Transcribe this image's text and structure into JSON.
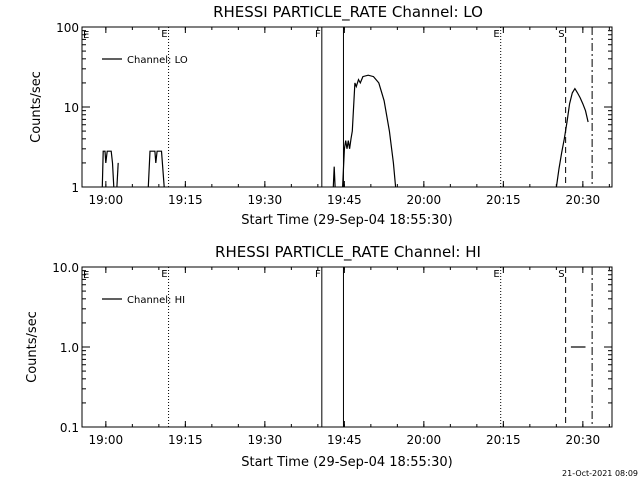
{
  "footer": {
    "timestamp": "21-Oct-2021 08:09"
  },
  "chart_data": [
    {
      "type": "line",
      "title": "RHESSI PARTICLE_RATE Channel: LO",
      "xlabel": "Start Time (29-Sep-04 18:55:30)",
      "ylabel": "Counts/sec",
      "y_scale": "log",
      "xlim": [
        "18:55:30",
        "20:35:30"
      ],
      "ylim": [
        1,
        100
      ],
      "x_ticks": [
        "19:00",
        "19:15",
        "19:30",
        "19:45",
        "20:00",
        "20:15",
        "20:30"
      ],
      "y_ticks": [
        "1",
        "10",
        "100"
      ],
      "legend": {
        "label": "Channel: LO",
        "placement": "top-left"
      },
      "series": [
        {
          "name": "Channel: LO",
          "segments": [
            [
              [
                "18:59:20",
                1.0
              ],
              [
                "18:59:30",
                2.8
              ],
              [
                "18:59:50",
                2.8
              ],
              [
                "19:00:00",
                2.0
              ],
              [
                "19:00:15",
                2.8
              ],
              [
                "19:01:00",
                2.8
              ],
              [
                "19:01:15",
                2.0
              ],
              [
                "19:01:30",
                1.0
              ]
            ],
            [
              [
                "19:02:05",
                1.0
              ],
              [
                "19:02:20",
                2.0
              ]
            ],
            [
              [
                "19:08:00",
                1.0
              ],
              [
                "19:08:20",
                2.8
              ],
              [
                "19:09:15",
                2.8
              ],
              [
                "19:09:25",
                2.0
              ],
              [
                "19:09:40",
                2.8
              ],
              [
                "19:10:30",
                2.8
              ],
              [
                "19:11:00",
                1.0
              ]
            ],
            [
              [
                "19:42:55",
                1.0
              ],
              [
                "19:43:05",
                1.8
              ],
              [
                "19:43:15",
                1.0
              ]
            ],
            [
              [
                "19:44:40",
                1.0
              ],
              [
                "19:45:00",
                3.0
              ],
              [
                "19:45:15",
                3.8
              ],
              [
                "19:45:30",
                3.0
              ],
              [
                "19:45:45",
                3.8
              ],
              [
                "19:46:00",
                3.0
              ],
              [
                "19:46:15",
                4.0
              ],
              [
                "19:46:30",
                5.0
              ],
              [
                "19:47:00",
                20
              ],
              [
                "19:47:15",
                18
              ],
              [
                "19:47:40",
                22
              ],
              [
                "19:48:00",
                20
              ],
              [
                "19:48:30",
                24
              ],
              [
                "19:49:30",
                25
              ],
              [
                "19:50:30",
                24
              ],
              [
                "19:51:30",
                20
              ],
              [
                "19:52:30",
                12
              ],
              [
                "19:53:30",
                5
              ],
              [
                "19:54:15",
                2
              ],
              [
                "19:54:40",
                1.0
              ]
            ],
            [
              [
                "20:25:00",
                1.0
              ],
              [
                "20:25:30",
                1.7
              ],
              [
                "20:26:00",
                2.7
              ],
              [
                "20:26:30",
                4.0
              ],
              [
                "20:27:00",
                6.5
              ],
              [
                "20:27:30",
                11
              ],
              [
                "20:28:00",
                15
              ],
              [
                "20:28:30",
                17
              ],
              [
                "20:29:00",
                15
              ],
              [
                "20:29:30",
                13
              ],
              [
                "20:30:00",
                11
              ],
              [
                "20:30:30",
                9
              ],
              [
                "20:31:00",
                6.5
              ]
            ]
          ]
        }
      ],
      "markers": [
        {
          "time": "19:11:50",
          "label": "E",
          "style": "dotted"
        },
        {
          "time": "19:40:45",
          "label": "F",
          "style": "solid"
        },
        {
          "time": "19:44:50",
          "label": "",
          "style": "solid"
        },
        {
          "time": "20:14:30",
          "label": "E",
          "style": "dotted"
        },
        {
          "time": "20:26:45",
          "label": "S",
          "style": "dashed"
        },
        {
          "time": "20:31:45",
          "label": "",
          "style": "dashdot"
        }
      ]
    },
    {
      "type": "line",
      "title": "RHESSI PARTICLE_RATE Channel: HI",
      "xlabel": "Start Time (29-Sep-04 18:55:30)",
      "ylabel": "Counts/sec",
      "y_scale": "log",
      "xlim": [
        "18:55:30",
        "20:35:30"
      ],
      "ylim": [
        0.1,
        10
      ],
      "x_ticks": [
        "19:00",
        "19:15",
        "19:30",
        "19:45",
        "20:00",
        "20:15",
        "20:30"
      ],
      "y_ticks": [
        "0.1",
        "1.0",
        "10.0"
      ],
      "legend": {
        "label": "Channel: HI",
        "placement": "top-left"
      },
      "series": [
        {
          "name": "Channel: HI",
          "segments": [
            [
              [
                "20:27:45",
                1.0
              ],
              [
                "20:30:30",
                1.0
              ]
            ]
          ]
        }
      ],
      "markers": [
        {
          "time": "19:11:50",
          "label": "E",
          "style": "dotted"
        },
        {
          "time": "19:40:45",
          "label": "F",
          "style": "solid"
        },
        {
          "time": "19:44:50",
          "label": "",
          "style": "solid"
        },
        {
          "time": "20:14:30",
          "label": "E",
          "style": "dotted"
        },
        {
          "time": "20:26:45",
          "label": "S",
          "style": "dashed"
        },
        {
          "time": "20:31:45",
          "label": "",
          "style": "dashdot"
        }
      ]
    }
  ]
}
